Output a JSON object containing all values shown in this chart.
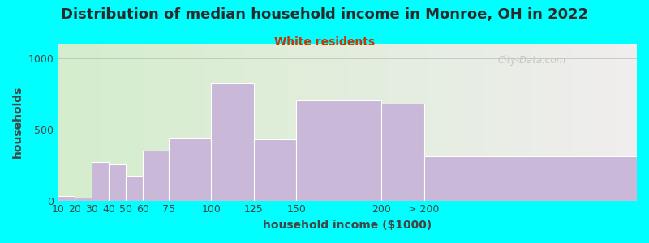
{
  "title": "Distribution of median household income in Monroe, OH in 2022",
  "subtitle": "White residents",
  "xlabel": "household income ($1000)",
  "ylabel": "households",
  "bin_edges": [
    10,
    20,
    30,
    40,
    50,
    60,
    75,
    100,
    125,
    150,
    200,
    225,
    350
  ],
  "tick_positions": [
    10,
    20,
    30,
    40,
    50,
    60,
    75,
    100,
    125,
    150,
    200,
    225
  ],
  "tick_labels": [
    "10",
    "20",
    "30",
    "40",
    "50",
    "60",
    "75",
    "100",
    "125",
    "150",
    "200",
    "> 200"
  ],
  "values": [
    30,
    20,
    270,
    255,
    175,
    350,
    440,
    820,
    430,
    700,
    680,
    310
  ],
  "bar_color": "#c9b8d8",
  "bar_edge_color": "#ffffff",
  "background_color": "#00ffff",
  "plot_bg_gradient_left": "#d4edcc",
  "plot_bg_gradient_right": "#f0eeee",
  "title_color": "#2a2a2a",
  "subtitle_color": "#cc3300",
  "axis_label_color": "#444444",
  "tick_color": "#444444",
  "xlim": [
    10,
    350
  ],
  "ylim": [
    0,
    1100
  ],
  "yticks": [
    0,
    500,
    1000
  ],
  "title_fontsize": 13,
  "subtitle_fontsize": 10,
  "label_fontsize": 10,
  "tick_fontsize": 9,
  "watermark_text": "City-Data.com",
  "watermark_color": "#c0c0c0"
}
